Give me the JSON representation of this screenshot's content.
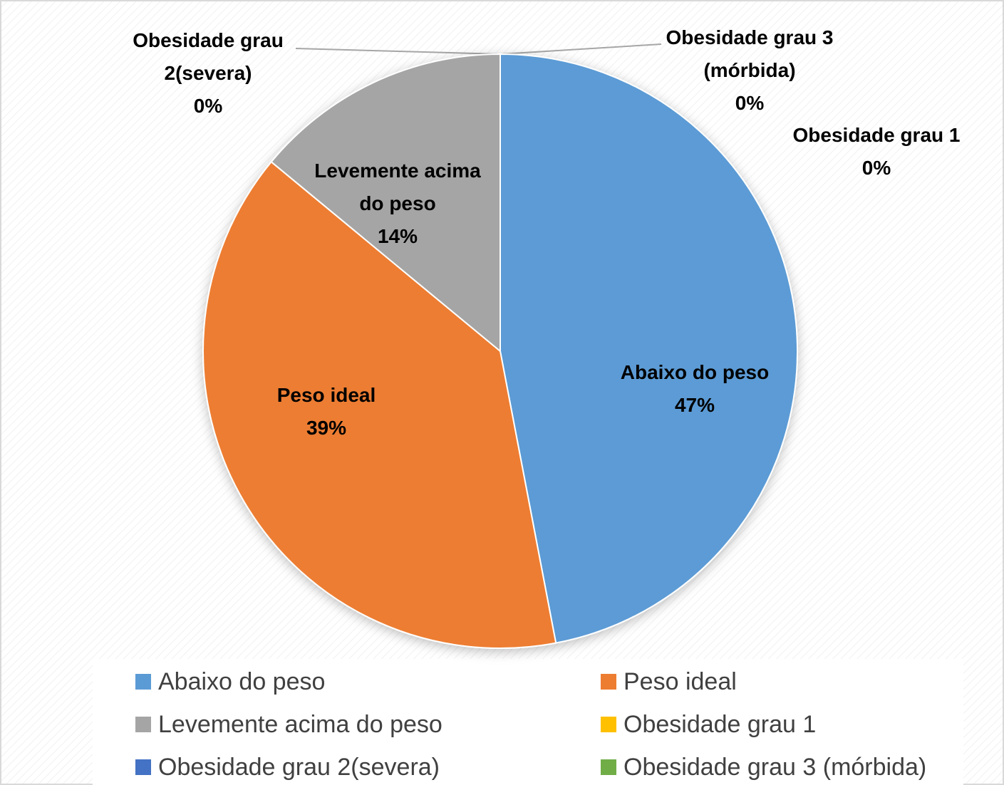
{
  "chart_data": {
    "type": "pie",
    "categories": [
      "Abaixo do peso",
      "Peso ideal",
      "Levemente acima do peso",
      "Obesidade grau 1",
      "Obesidade grau 2(severa)",
      "Obesidade grau 3 (mórbida)"
    ],
    "values": [
      47,
      39,
      14,
      0,
      0,
      0
    ],
    "value_labels": [
      "47%",
      "39%",
      "14%",
      "0%",
      "0%",
      "0%"
    ],
    "colors": [
      "#5b9bd5",
      "#ed7d31",
      "#a5a5a5",
      "#ffc000",
      "#4472c4",
      "#70ad47"
    ],
    "legend": "bottom"
  }
}
